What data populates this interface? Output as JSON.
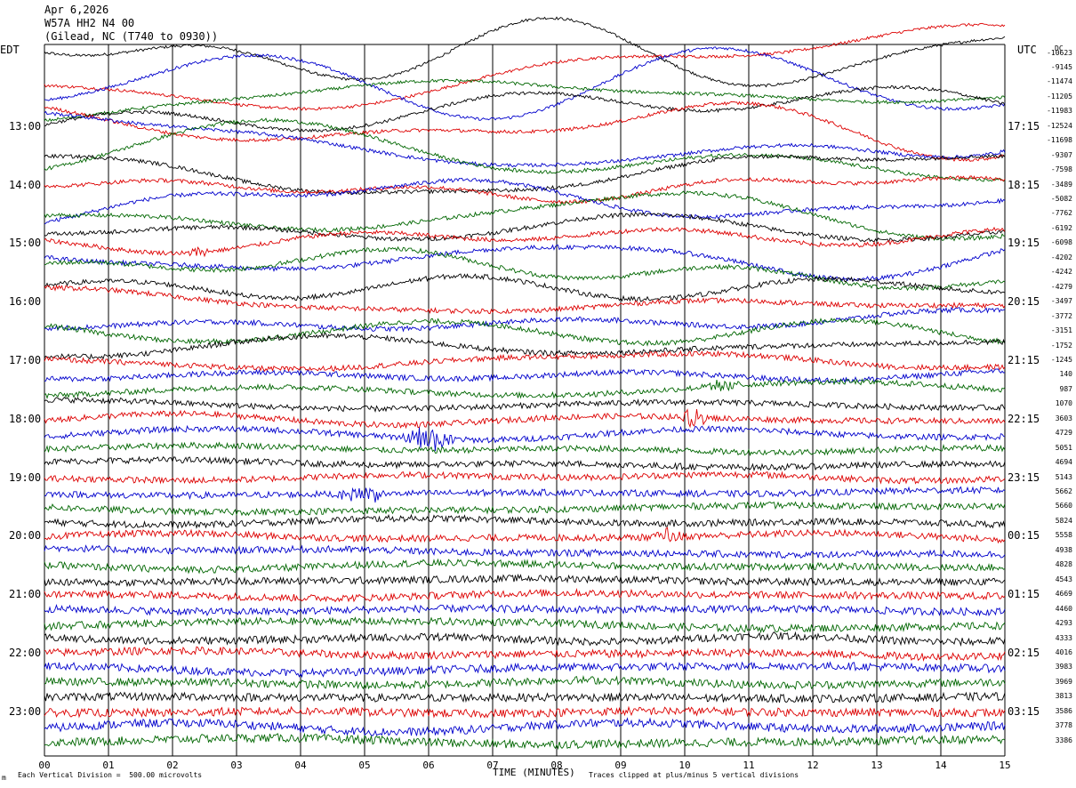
{
  "header": {
    "date": "Apr 6,2026",
    "station": "W57A HH2 N4 00",
    "location": "(Gilead, NC (T740 to 0930))"
  },
  "left_label": "EDT",
  "right_label": "UTC",
  "dc_label": "DC",
  "footer": {
    "scale_note": "Each Vertical Division =  500.00 microvolts",
    "clip_note": "Traces clipped at plus/minus 5 vertical divisions",
    "marker": "m"
  },
  "colors": {
    "cycle": [
      "#000000",
      "#dd0000",
      "#0000cc",
      "#006600"
    ],
    "grid": "#000000"
  },
  "chart_data": {
    "type": "line",
    "title": "",
    "xlabel": "TIME (MINUTES)",
    "ylabel": "",
    "xlim": [
      0,
      15
    ],
    "x_ticks": [
      "00",
      "01",
      "02",
      "03",
      "04",
      "05",
      "06",
      "07",
      "08",
      "09",
      "10",
      "11",
      "12",
      "13",
      "14",
      "15"
    ],
    "rows_per_hour": 4,
    "minutes_per_row": 15,
    "left_hour_labels": [
      "13:00",
      "14:00",
      "15:00",
      "16:00",
      "17:00",
      "18:00",
      "19:00",
      "20:00",
      "21:00",
      "22:00",
      "23:00"
    ],
    "right_hour_labels": [
      "17:15",
      "18:15",
      "19:15",
      "20:15",
      "21:15",
      "22:15",
      "23:15",
      "00:15",
      "01:15",
      "02:15",
      "03:15"
    ],
    "first_label_row": 5,
    "row_dc_offsets": [
      "-10623",
      "-9145",
      "-11474",
      "-11205",
      "-11983",
      "-12524",
      "-11698",
      "-9307",
      "-7598",
      "-3489",
      "-5082",
      "-7762",
      "-6192",
      "-6098",
      "-4202",
      "-4242",
      "-4279",
      "-3497",
      "-3772",
      "-3151",
      "-1752",
      "-1245",
      "140",
      "987",
      "1070",
      "3603",
      "4729",
      "5051",
      "4694",
      "5143",
      "5662",
      "5660",
      "5824",
      "5558",
      "4938",
      "4828",
      "4543",
      "4669",
      "4460",
      "4293",
      "4333",
      "4016",
      "3983",
      "3969",
      "3813",
      "3586",
      "3778",
      "3386"
    ],
    "row_amplitudes": [
      2.6,
      2.4,
      2.3,
      2.2,
      2.1,
      2.0,
      1.9,
      1.8,
      1.7,
      1.6,
      1.5,
      1.3,
      1.2,
      1.1,
      1.0,
      0.9,
      0.85,
      0.8,
      0.75,
      0.7,
      0.6,
      0.5,
      0.45,
      0.4,
      0.35,
      0.33,
      0.3,
      0.3,
      0.28,
      0.28,
      0.26,
      0.26,
      0.25,
      0.25,
      0.24,
      0.24,
      0.23,
      0.23,
      0.22,
      0.22,
      0.22,
      0.21,
      0.21,
      0.2,
      0.2,
      0.2,
      0.2,
      0.2
    ],
    "clip_divisions": 5,
    "events": [
      {
        "row": 26,
        "start_min": 5.5,
        "end_min": 6.5,
        "size": 1.2
      },
      {
        "row": 25,
        "start_min": 9.9,
        "end_min": 10.4,
        "size": 1.0
      },
      {
        "row": 30,
        "start_min": 4.5,
        "end_min": 5.5,
        "size": 0.8
      },
      {
        "row": 33,
        "start_min": 9.5,
        "end_min": 10.0,
        "size": 0.8
      },
      {
        "row": 23,
        "start_min": 10.2,
        "end_min": 11.0,
        "size": 0.6
      },
      {
        "row": 13,
        "start_min": 2.2,
        "end_min": 2.6,
        "size": 0.6
      }
    ]
  }
}
